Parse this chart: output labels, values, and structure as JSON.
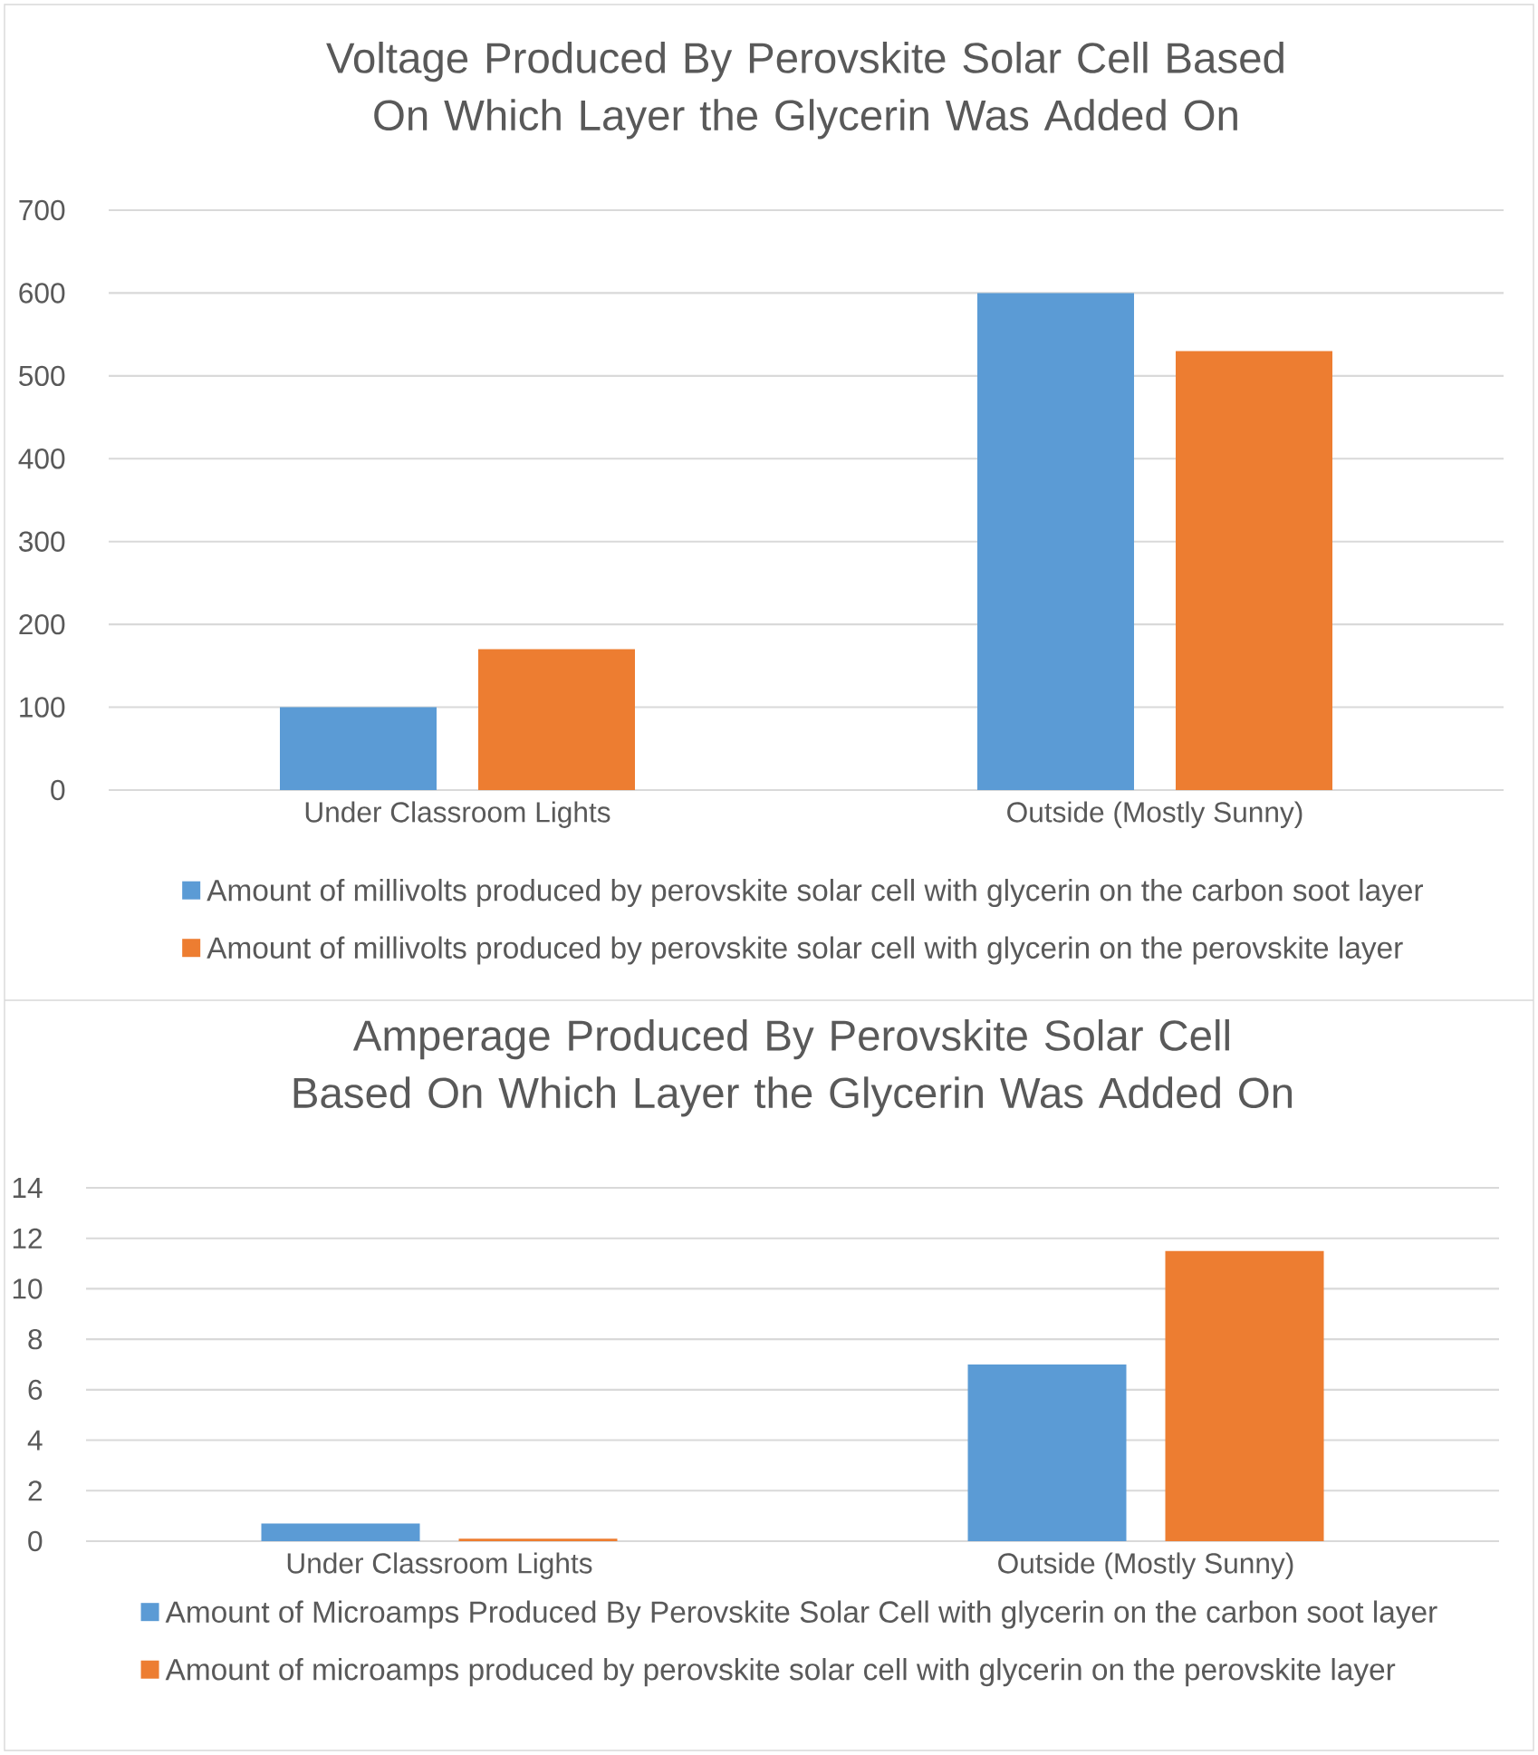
{
  "chart_data": [
    {
      "type": "bar",
      "title": "Voltage Produced By Perovskite Solar Cell Based On Which Layer the Glycerin Was Added On",
      "categories": [
        "Under Classroom Lights",
        "Outside (Mostly Sunny)"
      ],
      "series": [
        {
          "name": "Amount of millivolts produced by perovskite solar cell with glycerin on the carbon soot layer",
          "color": "#5b9bd5",
          "values": [
            100,
            600
          ]
        },
        {
          "name": "Amount of millivolts produced by perovskite solar cell with glycerin on the perovskite layer",
          "color": "#ed7d31",
          "values": [
            170,
            530
          ]
        }
      ],
      "ylim": [
        0,
        700
      ],
      "yticks": [
        0,
        100,
        200,
        300,
        400,
        500,
        600,
        700
      ],
      "grid": "y",
      "legend": "bottom"
    },
    {
      "type": "bar",
      "title": "Amperage Produced By Perovskite Solar Cell Based On Which Layer the Glycerin Was Added On",
      "categories": [
        "Under Classroom Lights",
        "Outside (Mostly Sunny)"
      ],
      "series": [
        {
          "name": "Amount of Microamps Produced By Perovskite Solar Cell with glycerin on the carbon soot layer",
          "color": "#5b9bd5",
          "values": [
            0.7,
            7
          ]
        },
        {
          "name": "Amount of microamps produced by perovskite solar cell with glycerin on the perovskite layer",
          "color": "#ed7d31",
          "values": [
            0.1,
            11.5
          ]
        }
      ],
      "ylim": [
        0,
        14
      ],
      "yticks": [
        0,
        2,
        4,
        6,
        8,
        10,
        12,
        14
      ],
      "grid": "y",
      "legend": "bottom"
    }
  ]
}
